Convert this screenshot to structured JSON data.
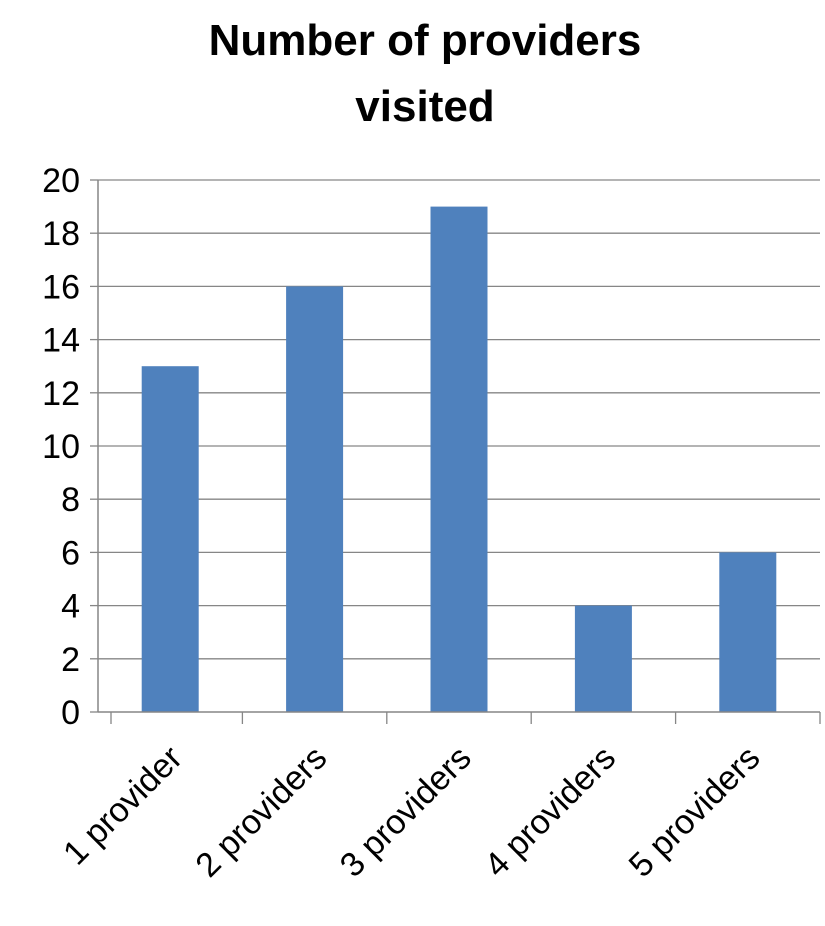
{
  "chart_data": {
    "type": "bar",
    "title": "Number of providers visited",
    "title_lines": [
      "Number of providers",
      "visited"
    ],
    "categories": [
      "1 provider",
      "2 providers",
      "3 providers",
      "4 providers",
      "5 providers"
    ],
    "values": [
      13,
      16,
      19,
      4,
      6
    ],
    "xlabel": "",
    "ylabel": "",
    "ylim": [
      0,
      20
    ],
    "yticks": [
      "0",
      "2",
      "4",
      "6",
      "8",
      "10",
      "12",
      "14",
      "16",
      "18",
      "20"
    ],
    "grid": true,
    "legend": "none",
    "bar_color": "#4f81bd",
    "grid_color": "#868686"
  }
}
